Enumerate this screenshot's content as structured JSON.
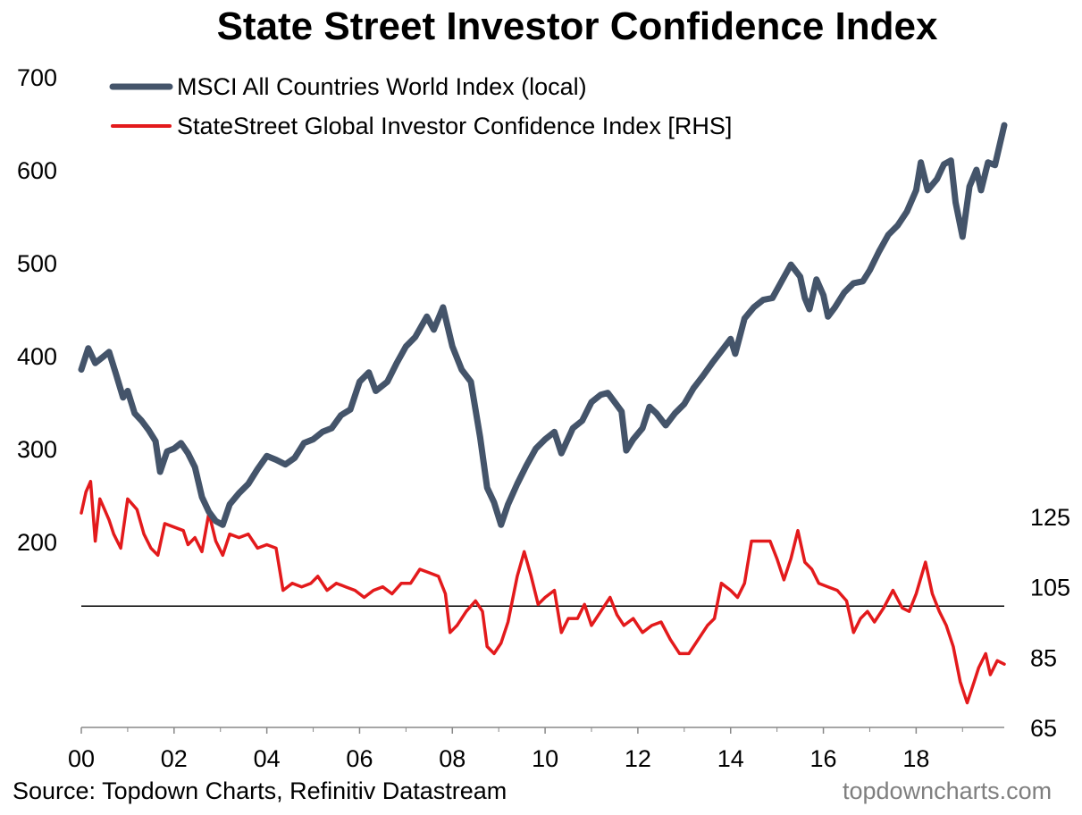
{
  "footer": {
    "source": "Source: Topdown Charts, Refinitiv Datastream",
    "brand": "topdowncharts.com"
  },
  "chart_data": {
    "type": "line",
    "title": "State Street Investor Confidence Index",
    "xlabel": "",
    "ylabel": "",
    "x_tick_labels": [
      "00",
      "02",
      "04",
      "06",
      "08",
      "10",
      "12",
      "14",
      "16",
      "18"
    ],
    "x_range": [
      2000,
      2019.9
    ],
    "y_left": {
      "ticks": [
        200,
        300,
        400,
        500,
        600,
        700
      ],
      "range": [
        0,
        700
      ]
    },
    "y_right": {
      "ticks": [
        65,
        85,
        105,
        125
      ],
      "range": [
        65,
        125
      ]
    },
    "reference_line": {
      "axis": "right",
      "value": 99.5,
      "color": "#000000"
    },
    "legend_position": "top-left",
    "grid": false,
    "series": [
      {
        "name": "MSCI All Countries World Index (local)",
        "axis": "left",
        "color": "#44546a",
        "points": [
          [
            2000.0,
            385
          ],
          [
            2000.15,
            408
          ],
          [
            2000.3,
            392
          ],
          [
            2000.45,
            398
          ],
          [
            2000.6,
            404
          ],
          [
            2000.75,
            380
          ],
          [
            2000.9,
            355
          ],
          [
            2001.0,
            362
          ],
          [
            2001.15,
            338
          ],
          [
            2001.3,
            330
          ],
          [
            2001.45,
            320
          ],
          [
            2001.6,
            308
          ],
          [
            2001.7,
            275
          ],
          [
            2001.85,
            297
          ],
          [
            2002.0,
            300
          ],
          [
            2002.15,
            306
          ],
          [
            2002.3,
            295
          ],
          [
            2002.45,
            280
          ],
          [
            2002.6,
            248
          ],
          [
            2002.75,
            232
          ],
          [
            2002.9,
            222
          ],
          [
            2003.05,
            218
          ],
          [
            2003.2,
            240
          ],
          [
            2003.4,
            252
          ],
          [
            2003.6,
            262
          ],
          [
            2003.8,
            278
          ],
          [
            2004.0,
            292
          ],
          [
            2004.2,
            288
          ],
          [
            2004.4,
            283
          ],
          [
            2004.6,
            290
          ],
          [
            2004.8,
            306
          ],
          [
            2005.0,
            310
          ],
          [
            2005.2,
            318
          ],
          [
            2005.4,
            322
          ],
          [
            2005.6,
            336
          ],
          [
            2005.8,
            342
          ],
          [
            2006.0,
            372
          ],
          [
            2006.2,
            382
          ],
          [
            2006.35,
            362
          ],
          [
            2006.6,
            372
          ],
          [
            2006.8,
            392
          ],
          [
            2007.0,
            410
          ],
          [
            2007.2,
            420
          ],
          [
            2007.45,
            442
          ],
          [
            2007.6,
            428
          ],
          [
            2007.8,
            452
          ],
          [
            2008.0,
            410
          ],
          [
            2008.2,
            385
          ],
          [
            2008.4,
            372
          ],
          [
            2008.6,
            312
          ],
          [
            2008.75,
            258
          ],
          [
            2008.9,
            242
          ],
          [
            2009.05,
            218
          ],
          [
            2009.2,
            240
          ],
          [
            2009.4,
            262
          ],
          [
            2009.6,
            282
          ],
          [
            2009.8,
            300
          ],
          [
            2010.0,
            310
          ],
          [
            2010.2,
            318
          ],
          [
            2010.35,
            295
          ],
          [
            2010.6,
            322
          ],
          [
            2010.8,
            330
          ],
          [
            2011.0,
            350
          ],
          [
            2011.2,
            358
          ],
          [
            2011.35,
            360
          ],
          [
            2011.5,
            350
          ],
          [
            2011.65,
            340
          ],
          [
            2011.75,
            298
          ],
          [
            2011.9,
            310
          ],
          [
            2012.1,
            322
          ],
          [
            2012.25,
            345
          ],
          [
            2012.4,
            338
          ],
          [
            2012.6,
            325
          ],
          [
            2012.8,
            338
          ],
          [
            2013.0,
            348
          ],
          [
            2013.2,
            365
          ],
          [
            2013.4,
            378
          ],
          [
            2013.6,
            392
          ],
          [
            2013.8,
            405
          ],
          [
            2014.0,
            418
          ],
          [
            2014.1,
            402
          ],
          [
            2014.3,
            440
          ],
          [
            2014.5,
            452
          ],
          [
            2014.7,
            460
          ],
          [
            2014.9,
            462
          ],
          [
            2015.1,
            480
          ],
          [
            2015.3,
            498
          ],
          [
            2015.5,
            485
          ],
          [
            2015.6,
            462
          ],
          [
            2015.7,
            450
          ],
          [
            2015.85,
            482
          ],
          [
            2016.0,
            465
          ],
          [
            2016.1,
            442
          ],
          [
            2016.25,
            452
          ],
          [
            2016.45,
            468
          ],
          [
            2016.65,
            478
          ],
          [
            2016.85,
            480
          ],
          [
            2017.0,
            492
          ],
          [
            2017.2,
            512
          ],
          [
            2017.4,
            530
          ],
          [
            2017.6,
            540
          ],
          [
            2017.8,
            555
          ],
          [
            2018.0,
            578
          ],
          [
            2018.1,
            608
          ],
          [
            2018.25,
            578
          ],
          [
            2018.45,
            590
          ],
          [
            2018.6,
            606
          ],
          [
            2018.75,
            610
          ],
          [
            2018.85,
            565
          ],
          [
            2019.0,
            528
          ],
          [
            2019.15,
            582
          ],
          [
            2019.3,
            600
          ],
          [
            2019.4,
            578
          ],
          [
            2019.55,
            608
          ],
          [
            2019.7,
            605
          ],
          [
            2019.9,
            648
          ]
        ]
      },
      {
        "name": "StateStreet Global Investor Confidence Index [RHS]",
        "axis": "right",
        "color": "#e31a1c",
        "points": [
          [
            2000.0,
            126
          ],
          [
            2000.1,
            132
          ],
          [
            2000.2,
            135
          ],
          [
            2000.3,
            118
          ],
          [
            2000.4,
            130
          ],
          [
            2000.5,
            127
          ],
          [
            2000.6,
            124
          ],
          [
            2000.7,
            120
          ],
          [
            2000.85,
            116
          ],
          [
            2001.0,
            130
          ],
          [
            2001.2,
            127
          ],
          [
            2001.35,
            120
          ],
          [
            2001.5,
            116
          ],
          [
            2001.65,
            114
          ],
          [
            2001.8,
            123
          ],
          [
            2002.0,
            122
          ],
          [
            2002.2,
            121
          ],
          [
            2002.3,
            117
          ],
          [
            2002.45,
            119
          ],
          [
            2002.6,
            115
          ],
          [
            2002.75,
            126
          ],
          [
            2002.9,
            118
          ],
          [
            2003.05,
            114
          ],
          [
            2003.2,
            120
          ],
          [
            2003.4,
            119
          ],
          [
            2003.6,
            120
          ],
          [
            2003.8,
            116
          ],
          [
            2004.0,
            117
          ],
          [
            2004.2,
            116
          ],
          [
            2004.35,
            104
          ],
          [
            2004.55,
            106
          ],
          [
            2004.75,
            105
          ],
          [
            2004.95,
            106
          ],
          [
            2005.1,
            108
          ],
          [
            2005.3,
            104
          ],
          [
            2005.5,
            106
          ],
          [
            2005.7,
            105
          ],
          [
            2005.9,
            104
          ],
          [
            2006.1,
            102
          ],
          [
            2006.3,
            104
          ],
          [
            2006.5,
            105
          ],
          [
            2006.7,
            103
          ],
          [
            2006.9,
            106
          ],
          [
            2007.1,
            106
          ],
          [
            2007.3,
            110
          ],
          [
            2007.5,
            109
          ],
          [
            2007.7,
            108
          ],
          [
            2007.85,
            103
          ],
          [
            2007.95,
            92
          ],
          [
            2008.1,
            94
          ],
          [
            2008.3,
            98
          ],
          [
            2008.5,
            101
          ],
          [
            2008.65,
            98
          ],
          [
            2008.75,
            88
          ],
          [
            2008.9,
            86
          ],
          [
            2009.05,
            89
          ],
          [
            2009.2,
            95
          ],
          [
            2009.4,
            108
          ],
          [
            2009.55,
            115
          ],
          [
            2009.7,
            108
          ],
          [
            2009.85,
            100
          ],
          [
            2010.0,
            102
          ],
          [
            2010.2,
            104
          ],
          [
            2010.35,
            92
          ],
          [
            2010.5,
            96
          ],
          [
            2010.7,
            96
          ],
          [
            2010.85,
            100
          ],
          [
            2011.0,
            94
          ],
          [
            2011.2,
            98
          ],
          [
            2011.4,
            102
          ],
          [
            2011.55,
            97
          ],
          [
            2011.7,
            94
          ],
          [
            2011.9,
            96
          ],
          [
            2012.1,
            92
          ],
          [
            2012.3,
            94
          ],
          [
            2012.5,
            95
          ],
          [
            2012.7,
            90
          ],
          [
            2012.9,
            86
          ],
          [
            2013.1,
            86
          ],
          [
            2013.3,
            90
          ],
          [
            2013.5,
            94
          ],
          [
            2013.65,
            96
          ],
          [
            2013.8,
            106
          ],
          [
            2014.0,
            104
          ],
          [
            2014.15,
            102
          ],
          [
            2014.3,
            106
          ],
          [
            2014.45,
            118
          ],
          [
            2014.65,
            118
          ],
          [
            2014.85,
            118
          ],
          [
            2015.0,
            113
          ],
          [
            2015.15,
            107
          ],
          [
            2015.3,
            113
          ],
          [
            2015.45,
            121
          ],
          [
            2015.6,
            112
          ],
          [
            2015.75,
            110
          ],
          [
            2015.9,
            106
          ],
          [
            2016.1,
            105
          ],
          [
            2016.3,
            104
          ],
          [
            2016.5,
            101
          ],
          [
            2016.65,
            92
          ],
          [
            2016.8,
            96
          ],
          [
            2016.95,
            98
          ],
          [
            2017.1,
            95
          ],
          [
            2017.3,
            99
          ],
          [
            2017.5,
            104
          ],
          [
            2017.7,
            99
          ],
          [
            2017.85,
            98
          ],
          [
            2018.0,
            103
          ],
          [
            2018.2,
            112
          ],
          [
            2018.35,
            103
          ],
          [
            2018.5,
            98
          ],
          [
            2018.65,
            94
          ],
          [
            2018.8,
            88
          ],
          [
            2018.95,
            78
          ],
          [
            2019.1,
            72
          ],
          [
            2019.25,
            78
          ],
          [
            2019.35,
            82
          ],
          [
            2019.5,
            86
          ],
          [
            2019.6,
            80
          ],
          [
            2019.75,
            84
          ],
          [
            2019.9,
            83
          ]
        ]
      }
    ]
  }
}
